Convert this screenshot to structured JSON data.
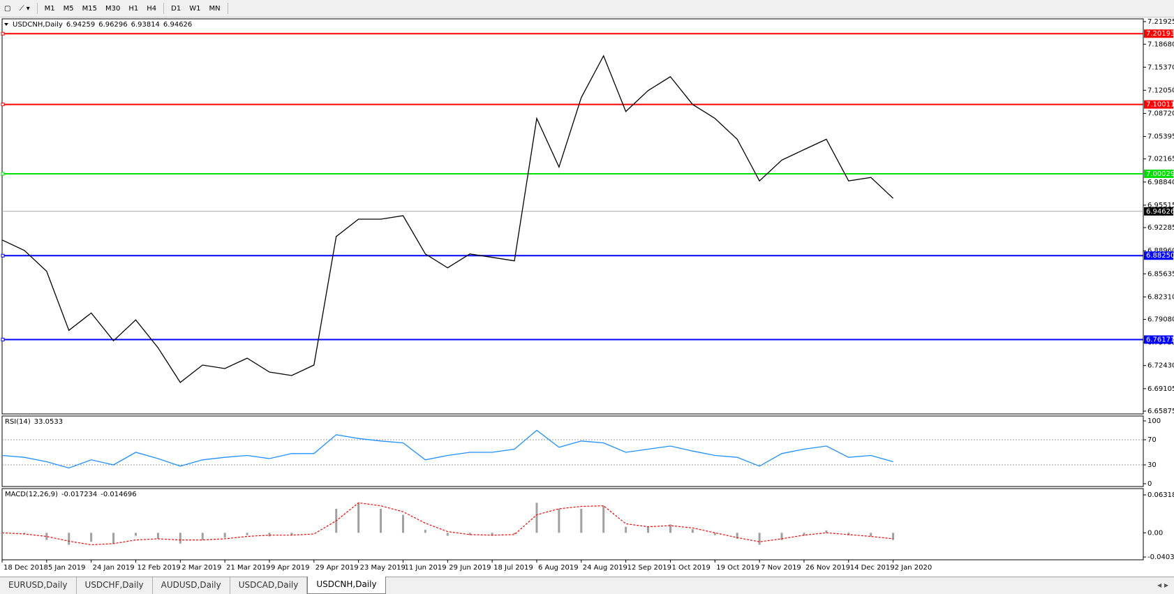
{
  "toolbar": {
    "buttons": [
      "M1",
      "M5",
      "M15",
      "M30",
      "H1",
      "H4",
      "D1",
      "W1",
      "MN"
    ]
  },
  "chart_data": [
    {
      "type": "line",
      "title": "USDCNH,Daily",
      "quote": [
        6.94259,
        6.96296,
        6.93814,
        6.94626
      ],
      "x_labels": [
        "18 Dec 2018",
        "5 Jan 2019",
        "24 Jan 2019",
        "12 Feb 2019",
        "2 Mar 2019",
        "21 Mar 2019",
        "9 Apr 2019",
        "29 Apr 2019",
        "23 May 2019",
        "11 Jun 2019",
        "29 Jun 2019",
        "18 Jul 2019",
        "6 Aug 2019",
        "24 Aug 2019",
        "12 Sep 2019",
        "1 Oct 2019",
        "19 Oct 2019",
        "7 Nov 2019",
        "26 Nov 2019",
        "14 Dec 2019",
        "2 Jan 2020"
      ],
      "series": [
        {
          "color": "#000000",
          "values": [
            6.905,
            6.89,
            6.86,
            6.775,
            6.8,
            6.76,
            6.79,
            6.75,
            6.7,
            6.725,
            6.72,
            6.735,
            6.715,
            6.71,
            6.725,
            6.91,
            6.935,
            6.935,
            6.94,
            6.885,
            6.865,
            6.885,
            6.88,
            6.875,
            7.08,
            7.01,
            7.11,
            7.17,
            7.09,
            7.12,
            7.14,
            7.1,
            7.08,
            7.05,
            6.99,
            7.02,
            7.035,
            7.05,
            6.99,
            6.995,
            6.965
          ]
        }
      ],
      "levels": {
        "values": [
          7.20193,
          7.10011,
          7.00029,
          6.94626,
          6.8825,
          6.76171
        ],
        "value_labels": [
          "7.20193",
          "7.10011",
          "7.00029",
          "6.94626",
          "6.88250",
          "6.76171"
        ],
        "colors": [
          "#ff0000",
          "#ff0000",
          "#00e000",
          "#000000",
          "#0000ff",
          "#0000ff"
        ]
      },
      "ylim": [
        6.65875,
        7.21925
      ],
      "yticks": [
        {
          "value": 7.21925,
          "label": "7.21925"
        },
        {
          "value": 7.1868,
          "label": "7.18680"
        },
        {
          "value": 7.1537,
          "label": "7.15370"
        },
        {
          "value": 7.1205,
          "label": "7.12050"
        },
        {
          "value": 7.0872,
          "label": "7.08720"
        },
        {
          "value": 7.05395,
          "label": "7.05395"
        },
        {
          "value": 7.02165,
          "label": "7.02165"
        },
        {
          "value": 6.9884,
          "label": "6.98840"
        },
        {
          "value": 6.95515,
          "label": "6.95515"
        },
        {
          "value": 6.92285,
          "label": "6.92285"
        },
        {
          "value": 6.8896,
          "label": "6.88960"
        },
        {
          "value": 6.85635,
          "label": "6.85635"
        },
        {
          "value": 6.8231,
          "label": "6.82310"
        },
        {
          "value": 6.7908,
          "label": "6.79080"
        },
        {
          "value": 6.75755,
          "label": "6.75755"
        },
        {
          "value": 6.7243,
          "label": "6.72430"
        },
        {
          "value": 6.69105,
          "label": "6.69105"
        },
        {
          "value": 6.65875,
          "label": "6.65875"
        }
      ]
    },
    {
      "type": "line",
      "title": "RSI(14)",
      "current": 33.0533,
      "series": [
        {
          "color": "#1e90ff",
          "values": [
            45,
            42,
            35,
            25,
            38,
            30,
            50,
            40,
            28,
            38,
            42,
            45,
            40,
            48,
            48,
            78,
            72,
            68,
            65,
            38,
            45,
            50,
            50,
            55,
            85,
            58,
            68,
            65,
            50,
            55,
            60,
            52,
            45,
            42,
            28,
            48,
            55,
            60,
            42,
            45,
            35
          ]
        }
      ],
      "ylim": [
        0,
        100
      ],
      "yticks": [
        0,
        30,
        70,
        100
      ]
    },
    {
      "type": "macd",
      "title": "MACD(12,26,9)",
      "current": [
        -0.017234,
        -0.014696
      ],
      "series": [
        {
          "color": "#a0a0a0",
          "values": [
            -0.002,
            -0.002,
            -0.012,
            -0.02,
            -0.015,
            -0.018,
            -0.005,
            -0.01,
            -0.018,
            -0.012,
            -0.008,
            -0.004,
            -0.006,
            -0.004,
            0.0,
            0.04,
            0.05,
            0.04,
            0.03,
            0.005,
            -0.005,
            -0.004,
            -0.005,
            -0.002,
            0.05,
            0.04,
            0.04,
            0.045,
            0.01,
            0.01,
            0.014,
            0.006,
            -0.004,
            -0.01,
            -0.02,
            -0.012,
            -0.005,
            0.004,
            -0.004,
            -0.006,
            -0.012
          ]
        },
        {
          "color": "#ff0000",
          "values": [
            0.0,
            -0.002,
            -0.006,
            -0.014,
            -0.02,
            -0.018,
            -0.012,
            -0.01,
            -0.012,
            -0.012,
            -0.01,
            -0.006,
            -0.004,
            -0.004,
            -0.002,
            0.02,
            0.05,
            0.045,
            0.035,
            0.016,
            0.002,
            -0.003,
            -0.004,
            -0.003,
            0.03,
            0.04,
            0.044,
            0.045,
            0.015,
            0.01,
            0.012,
            0.008,
            0.0,
            -0.008,
            -0.015,
            -0.01,
            -0.004,
            0.0,
            -0.003,
            -0.006,
            -0.01
          ]
        }
      ],
      "ylim": [
        -0.040355,
        0.063184
      ],
      "yticks": [
        -0.040355,
        {
          "value": 0,
          "label": "0.00"
        },
        0.063184
      ]
    }
  ],
  "tabs": {
    "items": [
      "EURUSD,Daily",
      "USDCHF,Daily",
      "AUDUSD,Daily",
      "USDCAD,Daily",
      "USDCNH,Daily"
    ],
    "active": 4
  }
}
